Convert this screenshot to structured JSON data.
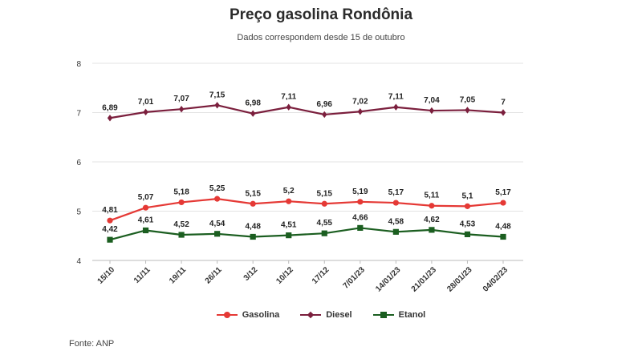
{
  "chart_data": {
    "type": "line",
    "title": "Preço gasolina Rondônia",
    "subtitle": "Dados correspondem desde 15 de outubro",
    "categories": [
      "15/10",
      "11/11",
      "19/11",
      "26/11",
      "3/12",
      "10/12",
      "17/12",
      "7/01/23",
      "14/01/23",
      "21/01/23",
      "28/01/23",
      "04/02/23"
    ],
    "yticks": [
      4,
      5,
      6,
      7,
      8
    ],
    "ylim": [
      4,
      8
    ],
    "grid": "horizontal",
    "legend_position": "bottom-center",
    "series": [
      {
        "name": "Gasolina",
        "color": "#e53935",
        "marker": "circle",
        "values": [
          4.81,
          5.07,
          5.18,
          5.25,
          5.15,
          5.2,
          5.15,
          5.19,
          5.17,
          5.11,
          5.1,
          5.17
        ],
        "labels": [
          "4,81",
          "5,07",
          "5,18",
          "5,25",
          "5,15",
          "5,2",
          "5,15",
          "5,19",
          "5,17",
          "5,11",
          "5,1",
          "5,17"
        ]
      },
      {
        "name": "Diesel",
        "color": "#7b1f3d",
        "marker": "diamond",
        "values": [
          6.89,
          7.01,
          7.07,
          7.15,
          6.98,
          7.11,
          6.96,
          7.02,
          7.11,
          7.04,
          7.05,
          7
        ],
        "labels": [
          "6,89",
          "7,01",
          "7,07",
          "7,15",
          "6,98",
          "7,11",
          "6,96",
          "7,02",
          "7,11",
          "7,04",
          "7,05",
          "7"
        ]
      },
      {
        "name": "Etanol",
        "color": "#1b5e20",
        "marker": "square",
        "values": [
          4.42,
          4.61,
          4.52,
          4.54,
          4.48,
          4.51,
          4.55,
          4.66,
          4.58,
          4.62,
          4.53,
          4.48
        ],
        "labels": [
          "4,42",
          "4,61",
          "4,52",
          "4,54",
          "4,48",
          "4,51",
          "4,55",
          "4,66",
          "4,58",
          "4,62",
          "4,53",
          "4,48"
        ]
      }
    ]
  },
  "source": "Fonte: ANP"
}
